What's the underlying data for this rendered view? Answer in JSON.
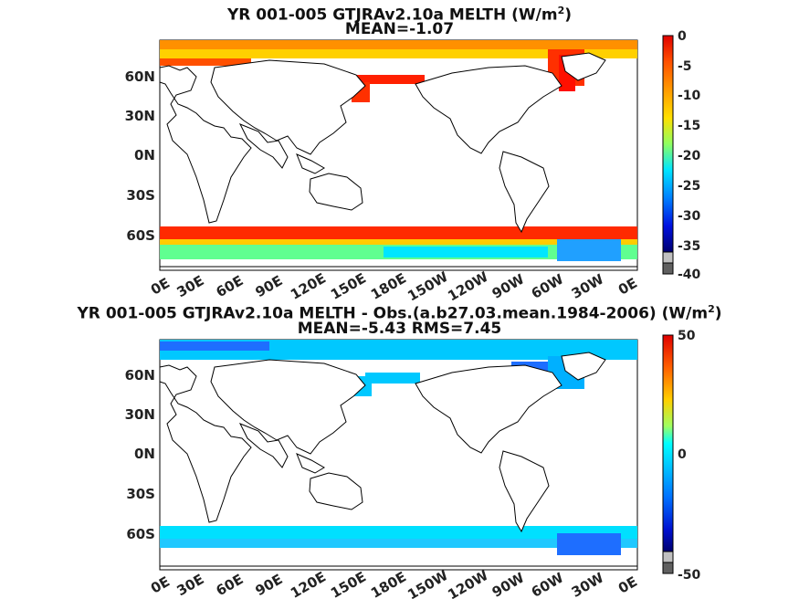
{
  "panels": [
    {
      "title_main": "YR 001-005 GTJRAv2.10a  MELTH (W/m",
      "title_sup": "2",
      "title_end": ")",
      "stats": "MEAN=-1.07",
      "y_ticks": [
        "60N",
        "30N",
        "0N",
        "30S",
        "60S"
      ],
      "x_ticks": [
        "0E",
        "30E",
        "60E",
        "90E",
        "120E",
        "150E",
        "180E",
        "150W",
        "120W",
        "90W",
        "60W",
        "30W",
        "0E"
      ],
      "colorbar": {
        "labels": [
          "0",
          "-5",
          "-10",
          "-15",
          "-20",
          "-25",
          "-30",
          "-35",
          "-40"
        ],
        "range": [
          -40,
          0
        ]
      }
    },
    {
      "title_main": "YR 001-005 GTJRAv2.10a MELTH - Obs.(a.b27.03.mean.1984-2006) (W/m",
      "title_sup": "2",
      "title_end": ")",
      "stats": "MEAN=-5.43 RMS=7.45",
      "y_ticks": [
        "60N",
        "30N",
        "0N",
        "30S",
        "60S"
      ],
      "x_ticks": [
        "0E",
        "30E",
        "60E",
        "90E",
        "120E",
        "150E",
        "180E",
        "150W",
        "120W",
        "90W",
        "60W",
        "30W",
        "0E"
      ],
      "colorbar": {
        "labels": [
          "50",
          "0",
          "-50"
        ],
        "range": [
          -50,
          50
        ]
      }
    }
  ],
  "colors": {
    "melt_high": "#ff2a00",
    "melt_mid": "#ffd200",
    "melt_low": "#00e6ff",
    "diff_blue": "#00c8ff",
    "diff_deep": "#1e6eff"
  }
}
